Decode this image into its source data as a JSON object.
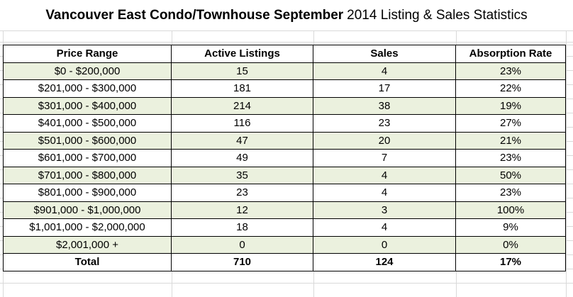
{
  "title": {
    "bold": "Vancouver East Condo/Townhouse September",
    "rest": "2014 Listing & Sales Statistics"
  },
  "table": {
    "headers": [
      "Price Range",
      "Active Listings",
      "Sales",
      "Absorption Rate"
    ],
    "rows": [
      [
        "$0 - $200,000",
        "15",
        "4",
        "23%"
      ],
      [
        "$201,000 - $300,000",
        "181",
        "17",
        "22%"
      ],
      [
        "$301,000 - $400,000",
        "214",
        "38",
        "19%"
      ],
      [
        "$401,000 - $500,000",
        "116",
        "23",
        "27%"
      ],
      [
        "$501,000 - $600,000",
        "47",
        "20",
        "21%"
      ],
      [
        "$601,000 - $700,000",
        "49",
        "7",
        "23%"
      ],
      [
        "$701,000 - $800,000",
        "35",
        "4",
        "50%"
      ],
      [
        "$801,000 - $900,000",
        "23",
        "4",
        "23%"
      ],
      [
        "$901,000 - $1,000,000",
        "12",
        "3",
        "100%"
      ],
      [
        "$1,001,000 - $2,000,000",
        "18",
        "4",
        "9%"
      ],
      [
        "$2,001,000 +",
        "0",
        "0",
        "0%"
      ]
    ],
    "total": [
      "Total",
      "710",
      "124",
      "17%"
    ]
  },
  "colors": {
    "row_shade": "#ebf1de",
    "gridline": "#d9d9d9",
    "border": "#000000"
  }
}
